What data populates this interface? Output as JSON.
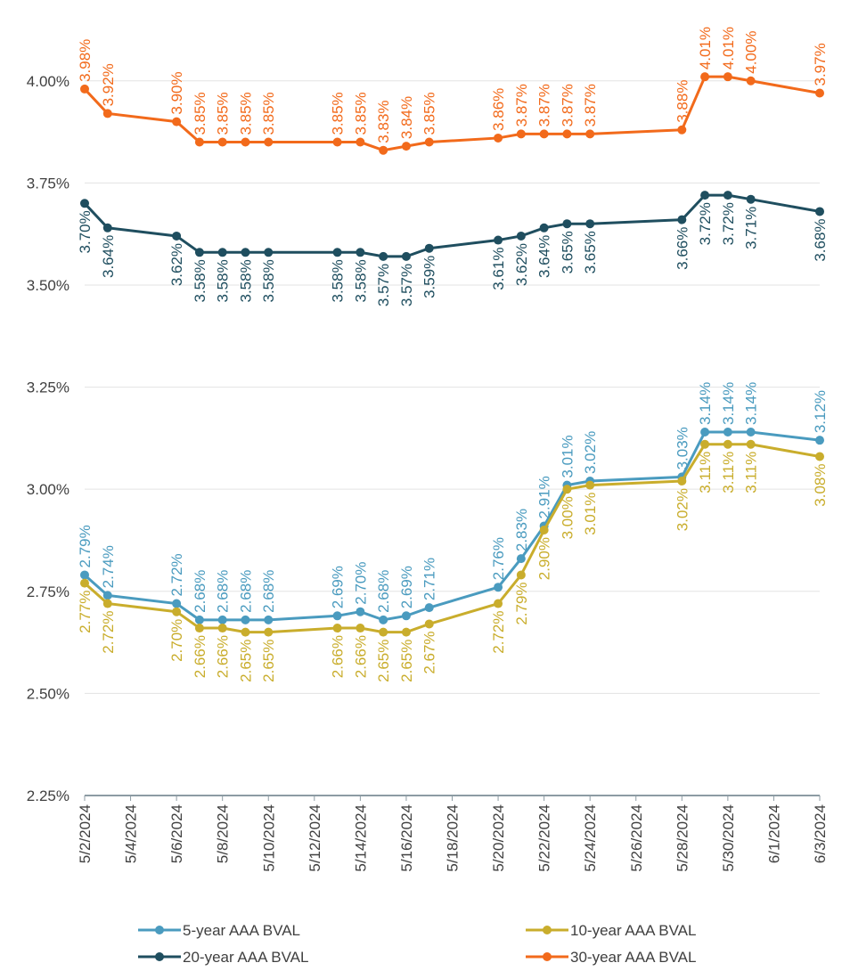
{
  "chart_data": {
    "type": "line",
    "x": [
      "5/2/2024",
      "5/3/2024",
      "5/6/2024",
      "5/7/2024",
      "5/8/2024",
      "5/9/2024",
      "5/10/2024",
      "5/13/2024",
      "5/14/2024",
      "5/15/2024",
      "5/16/2024",
      "5/17/2024",
      "5/20/2024",
      "5/21/2024",
      "5/22/2024",
      "5/23/2024",
      "5/24/2024",
      "5/28/2024",
      "5/29/2024",
      "5/30/2024",
      "5/31/2024",
      "6/3/2024"
    ],
    "xlim": [
      "5/2/2024",
      "6/3/2024"
    ],
    "xticks": [
      "5/2/2024",
      "5/4/2024",
      "5/6/2024",
      "5/8/2024",
      "5/10/2024",
      "5/12/2024",
      "5/14/2024",
      "5/16/2024",
      "5/18/2024",
      "5/20/2024",
      "5/22/2024",
      "5/24/2024",
      "5/26/2024",
      "5/28/2024",
      "5/30/2024",
      "6/1/2024",
      "6/3/2024"
    ],
    "ylim": [
      2.25,
      4.15
    ],
    "yticks": [
      {
        "value": 2.25,
        "label": "2.25%"
      },
      {
        "value": 2.5,
        "label": "2.50%"
      },
      {
        "value": 2.75,
        "label": "2.75%"
      },
      {
        "value": 3,
        "label": "3.00%"
      },
      {
        "value": 3.25,
        "label": "3.25%"
      },
      {
        "value": 3.5,
        "label": "3.50%"
      },
      {
        "value": 3.75,
        "label": "3.75%"
      },
      {
        "value": 4,
        "label": "4.00%"
      }
    ],
    "grid": true,
    "series": [
      {
        "name": "5-year AAA BVAL",
        "color": "#4a9bbf",
        "label_side": "above",
        "values": [
          2.79,
          2.74,
          2.72,
          2.68,
          2.68,
          2.68,
          2.68,
          2.69,
          2.7,
          2.68,
          2.69,
          2.71,
          2.76,
          2.83,
          2.91,
          3.01,
          3.02,
          3.03,
          3.14,
          3.14,
          3.14,
          3.12
        ],
        "value_labels": [
          "2.79%",
          "2.74%",
          "2.72%",
          "2.68%",
          "2.68%",
          "2.68%",
          "2.68%",
          "2.69%",
          "2.70%",
          "2.68%",
          "2.69%",
          "2.71%",
          "2.76%",
          "2.83%",
          "2.91%",
          "3.01%",
          "3.02%",
          "3.03%",
          "3.14%",
          "3.14%",
          "3.14%",
          "3.12%"
        ]
      },
      {
        "name": "10-year AAA BVAL",
        "color": "#c9ad2c",
        "label_side": "below",
        "values": [
          2.77,
          2.72,
          2.7,
          2.66,
          2.66,
          2.65,
          2.65,
          2.66,
          2.66,
          2.65,
          2.65,
          2.67,
          2.72,
          2.79,
          2.9,
          3.0,
          3.01,
          3.02,
          3.11,
          3.11,
          3.11,
          3.08
        ],
        "value_labels": [
          "2.77%",
          "2.72%",
          "2.70%",
          "2.66%",
          "2.66%",
          "2.65%",
          "2.65%",
          "2.66%",
          "2.66%",
          "2.65%",
          "2.65%",
          "2.67%",
          "2.72%",
          "2.79%",
          "2.90%",
          "3.00%",
          "3.01%",
          "3.02%",
          "3.11%",
          "3.11%",
          "3.11%",
          "3.08%"
        ]
      },
      {
        "name": "20-year AAA BVAL",
        "color": "#1f4e5f",
        "label_side": "below",
        "values": [
          3.7,
          3.64,
          3.62,
          3.58,
          3.58,
          3.58,
          3.58,
          3.58,
          3.58,
          3.57,
          3.57,
          3.59,
          3.61,
          3.62,
          3.64,
          3.65,
          3.65,
          3.66,
          3.72,
          3.72,
          3.71,
          3.68
        ],
        "value_labels": [
          "3.70%",
          "3.64%",
          "3.62%",
          "3.58%",
          "3.58%",
          "3.58%",
          "3.58%",
          "3.58%",
          "3.58%",
          "3.57%",
          "3.57%",
          "3.59%",
          "3.61%",
          "3.62%",
          "3.64%",
          "3.65%",
          "3.65%",
          "3.66%",
          "3.72%",
          "3.72%",
          "3.71%",
          "3.68%"
        ]
      },
      {
        "name": "30-year AAA BVAL",
        "color": "#f26a1b",
        "label_side": "above",
        "values": [
          3.98,
          3.92,
          3.9,
          3.85,
          3.85,
          3.85,
          3.85,
          3.85,
          3.85,
          3.83,
          3.84,
          3.85,
          3.86,
          3.87,
          3.87,
          3.87,
          3.87,
          3.88,
          4.01,
          4.01,
          4.0,
          3.97
        ],
        "value_labels": [
          "3.98%",
          "3.92%",
          "3.90%",
          "3.85%",
          "3.85%",
          "3.85%",
          "3.85%",
          "3.85%",
          "3.85%",
          "3.83%",
          "3.84%",
          "3.85%",
          "3.86%",
          "3.87%",
          "3.87%",
          "3.87%",
          "3.87%",
          "3.88%",
          "4.01%",
          "4.01%",
          "4.00%",
          "3.97%"
        ]
      }
    ],
    "legend": "bottom"
  }
}
